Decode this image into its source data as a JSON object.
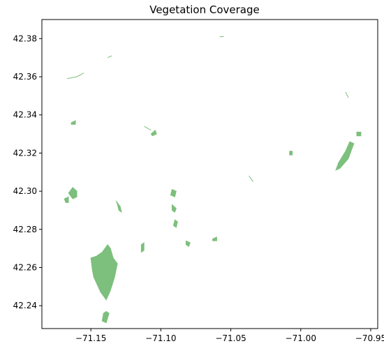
{
  "chart_data": {
    "type": "map",
    "title": "Vegetation Coverage",
    "xlabel": "",
    "ylabel": "",
    "xlim": [
      -71.185,
      -70.945
    ],
    "ylim": [
      42.228,
      42.39
    ],
    "x_ticks": [
      -71.15,
      -71.1,
      -71.05,
      -71.0,
      -70.95
    ],
    "x_tick_labels": [
      "−71.15",
      "−71.10",
      "−71.05",
      "−71.00",
      "−70.95"
    ],
    "y_ticks": [
      42.24,
      42.26,
      42.28,
      42.3,
      42.32,
      42.34,
      42.36,
      42.38
    ],
    "y_tick_labels": [
      "42.24",
      "42.26",
      "42.28",
      "42.30",
      "42.32",
      "42.34",
      "42.36",
      "42.38"
    ],
    "grid": false,
    "fill_color": "#7dbf7d",
    "patches": [
      [
        [
          -71.148,
          42.255
        ],
        [
          -71.143,
          42.247
        ],
        [
          -71.139,
          42.243
        ],
        [
          -71.136,
          42.248
        ],
        [
          -71.133,
          42.255
        ],
        [
          -71.131,
          42.262
        ],
        [
          -71.134,
          42.265
        ],
        [
          -71.136,
          42.27
        ],
        [
          -71.138,
          42.272
        ],
        [
          -71.142,
          42.268
        ],
        [
          -71.146,
          42.266
        ],
        [
          -71.15,
          42.265
        ],
        [
          -71.149,
          42.259
        ]
      ],
      [
        [
          -71.166,
          42.299
        ],
        [
          -71.163,
          42.302
        ],
        [
          -71.16,
          42.3
        ],
        [
          -71.16,
          42.297
        ],
        [
          -71.163,
          42.296
        ]
      ],
      [
        [
          -71.169,
          42.296
        ],
        [
          -71.166,
          42.297
        ],
        [
          -71.166,
          42.294
        ],
        [
          -71.168,
          42.294
        ]
      ],
      [
        [
          -71.142,
          42.232
        ],
        [
          -71.139,
          42.231
        ],
        [
          -71.137,
          42.236
        ],
        [
          -71.139,
          42.237
        ],
        [
          -71.141,
          42.236
        ]
      ],
      [
        [
          -71.132,
          42.295
        ],
        [
          -71.129,
          42.292
        ],
        [
          -71.128,
          42.289
        ],
        [
          -71.13,
          42.29
        ],
        [
          -71.131,
          42.293
        ]
      ],
      [
        [
          -71.114,
          42.272
        ],
        [
          -71.112,
          42.273
        ],
        [
          -71.112,
          42.269
        ],
        [
          -71.114,
          42.268
        ]
      ],
      [
        [
          -71.092,
          42.301
        ],
        [
          -71.089,
          42.3
        ],
        [
          -71.09,
          42.297
        ],
        [
          -71.093,
          42.298
        ]
      ],
      [
        [
          -71.092,
          42.293
        ],
        [
          -71.089,
          42.291
        ],
        [
          -71.09,
          42.289
        ],
        [
          -71.092,
          42.29
        ]
      ],
      [
        [
          -71.09,
          42.285
        ],
        [
          -71.088,
          42.284
        ],
        [
          -71.089,
          42.281
        ],
        [
          -71.091,
          42.282
        ]
      ],
      [
        [
          -71.082,
          42.274
        ],
        [
          -71.079,
          42.273
        ],
        [
          -71.08,
          42.271
        ],
        [
          -71.082,
          42.272
        ]
      ],
      [
        [
          -71.063,
          42.275
        ],
        [
          -71.06,
          42.276
        ],
        [
          -71.06,
          42.274
        ],
        [
          -71.063,
          42.274
        ]
      ],
      [
        [
          -70.972,
          42.312
        ],
        [
          -70.966,
          42.317
        ],
        [
          -70.962,
          42.325
        ],
        [
          -70.965,
          42.326
        ],
        [
          -70.968,
          42.321
        ],
        [
          -70.973,
          42.315
        ],
        [
          -70.975,
          42.311
        ]
      ],
      [
        [
          -70.96,
          42.331
        ],
        [
          -70.957,
          42.331
        ],
        [
          -70.957,
          42.329
        ],
        [
          -70.96,
          42.329
        ]
      ],
      [
        [
          -71.008,
          42.321
        ],
        [
          -71.006,
          42.321
        ],
        [
          -71.006,
          42.319
        ],
        [
          -71.008,
          42.319
        ]
      ],
      [
        [
          -71.164,
          42.336
        ],
        [
          -71.161,
          42.337
        ],
        [
          -71.161,
          42.335
        ],
        [
          -71.164,
          42.335
        ]
      ],
      [
        [
          -71.107,
          42.33
        ],
        [
          -71.104,
          42.332
        ],
        [
          -71.103,
          42.33
        ],
        [
          -71.106,
          42.329
        ]
      ]
    ],
    "lines": [
      [
        [
          -71.167,
          42.359
        ],
        [
          -71.16,
          42.36
        ],
        [
          -71.155,
          42.362
        ]
      ],
      [
        [
          -71.112,
          42.334
        ],
        [
          -71.107,
          42.332
        ]
      ],
      [
        [
          -71.037,
          42.308
        ],
        [
          -71.034,
          42.305
        ]
      ],
      [
        [
          -70.968,
          42.352
        ],
        [
          -70.966,
          42.349
        ]
      ],
      [
        [
          -71.058,
          42.381
        ],
        [
          -71.055,
          42.381
        ]
      ],
      [
        [
          -71.138,
          42.37
        ],
        [
          -71.135,
          42.371
        ]
      ]
    ]
  }
}
